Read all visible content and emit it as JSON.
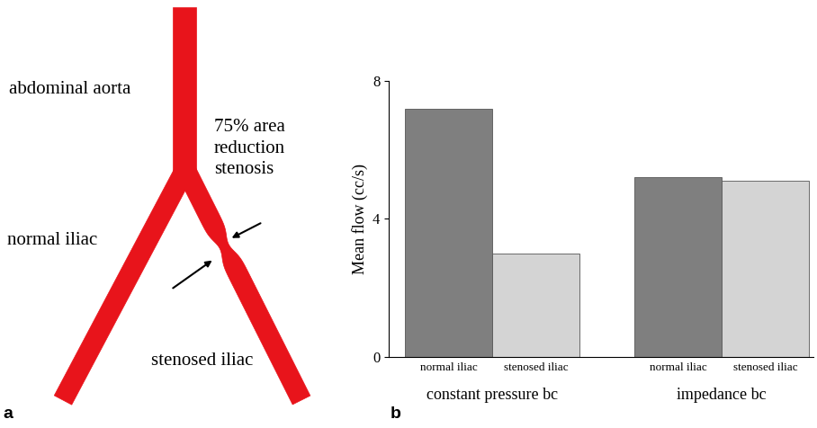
{
  "chart_data": {
    "type": "bar",
    "y_label": "Mean flow (cc/s)",
    "categories": [
      "constant pressure bc",
      "impedance bc"
    ],
    "series": [
      {
        "name": "normal iliac",
        "color": "#7f7f7f",
        "values": [
          7.2,
          5.2
        ]
      },
      {
        "name": "stenosed iliac",
        "color": "#d4d4d4",
        "values": [
          3.0,
          5.1
        ]
      }
    ],
    "ylim": [
      0,
      8
    ],
    "yticks": [
      0,
      4,
      8
    ],
    "grid": false
  },
  "diagram": {
    "labels": {
      "aorta": "abdominal aorta",
      "normal": "normal iliac",
      "stenosed": "stenosed iliac",
      "stenosis": "75% area\nreduction\nstenosis"
    }
  },
  "panel_labels": {
    "diagram": "a",
    "chart": "b"
  }
}
